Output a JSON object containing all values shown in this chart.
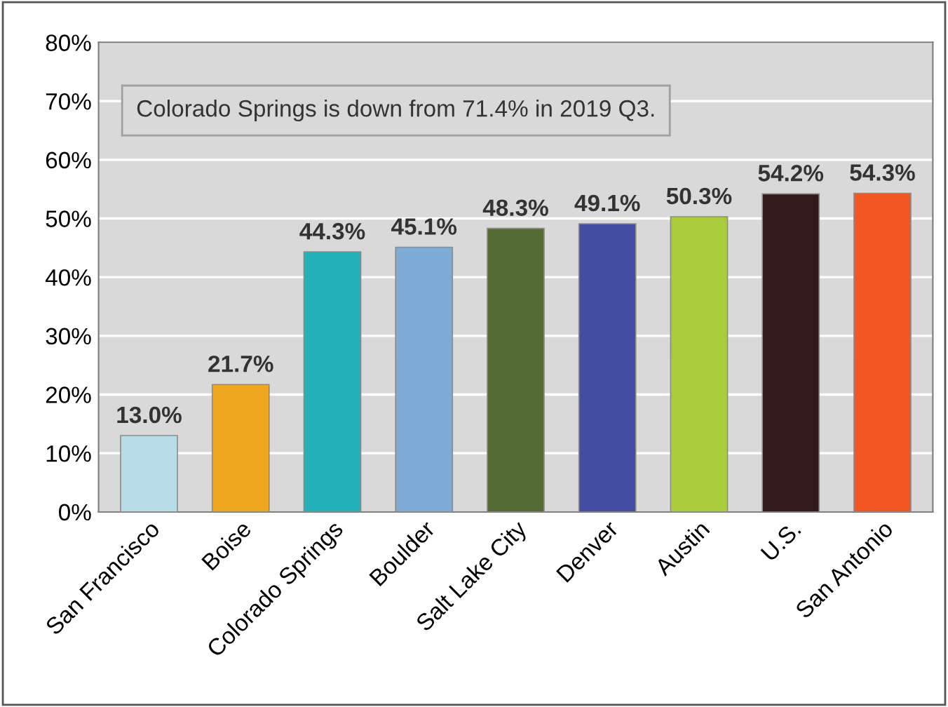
{
  "chart_data": {
    "type": "bar",
    "categories": [
      "San Francisco",
      "Boise",
      "Colorado Springs",
      "Boulder",
      "Salt Lake City",
      "Denver",
      "Austin",
      "U.S.",
      "San Antonio"
    ],
    "values": [
      13.0,
      21.7,
      44.3,
      45.1,
      48.3,
      49.1,
      50.3,
      54.2,
      54.3
    ],
    "value_labels": [
      "13.0%",
      "21.7%",
      "44.3%",
      "45.1%",
      "48.3%",
      "49.1%",
      "50.3%",
      "54.2%",
      "54.3%"
    ],
    "colors": [
      "#b7dde8",
      "#f0a71e",
      "#23b0b8",
      "#7eaad6",
      "#556b35",
      "#434ea3",
      "#a9cc3a",
      "#33181c",
      "#f25623"
    ],
    "ylim": [
      0,
      80
    ],
    "yticks": [
      {
        "value": 0,
        "label": "0%"
      },
      {
        "value": 10,
        "label": "10%"
      },
      {
        "value": 20,
        "label": "20%"
      },
      {
        "value": 30,
        "label": "30%"
      },
      {
        "value": 40,
        "label": "40%"
      },
      {
        "value": 50,
        "label": "50%"
      },
      {
        "value": 60,
        "label": "60%"
      },
      {
        "value": 70,
        "label": "70%"
      },
      {
        "value": 80,
        "label": "80%"
      }
    ],
    "grid": "y",
    "annotations": [
      "Colorado Springs is down from 71.4% in 2019 Q3."
    ]
  }
}
